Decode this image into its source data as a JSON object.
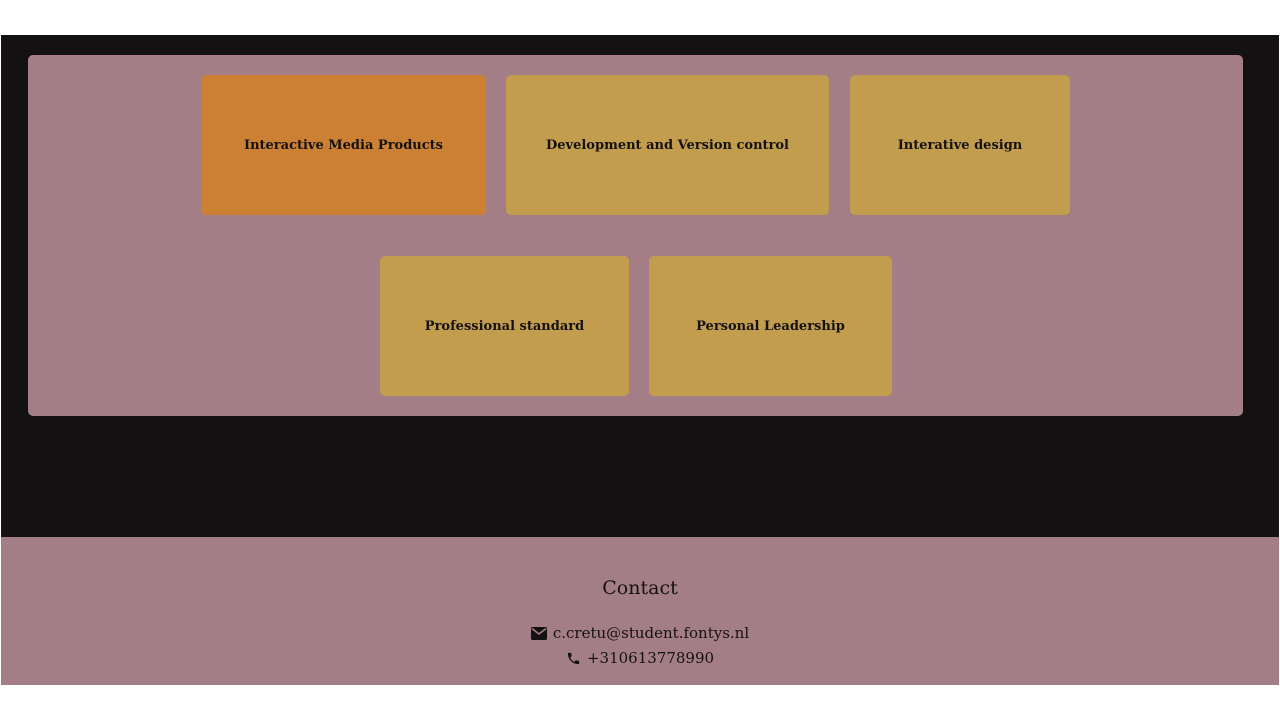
{
  "competencies": {
    "cards": [
      {
        "label": "Interactive Media Products",
        "active": true
      },
      {
        "label": "Development and Version control",
        "active": false
      },
      {
        "label": "Interative design",
        "active": false
      },
      {
        "label": "Professional standard",
        "active": false
      },
      {
        "label": "Personal Leadership",
        "active": false
      }
    ]
  },
  "footer": {
    "title": "Contact",
    "email": "c.cretu@student.fontys.nl",
    "phone": "+310613778990",
    "email_icon": "envelope-icon",
    "phone_icon": "phone-icon"
  },
  "colors": {
    "page_background": "#141112",
    "panel": "#a47e87",
    "card": "#c39d4e",
    "card_active": "#cc8034",
    "text": "#141112"
  }
}
